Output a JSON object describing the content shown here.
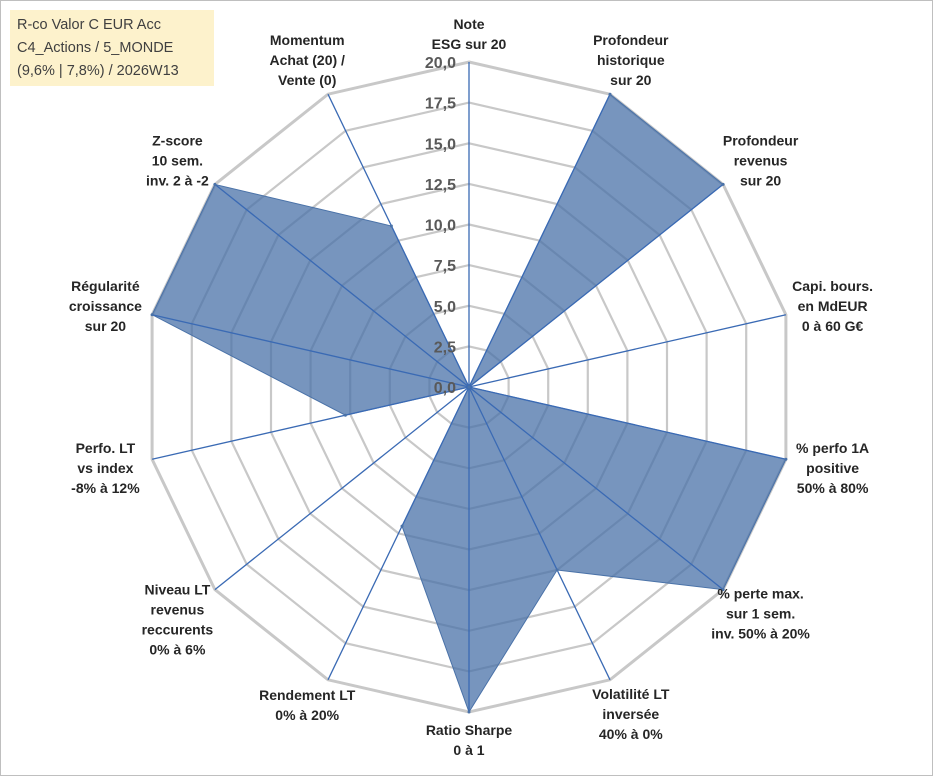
{
  "info": {
    "line1": "R-co Valor C EUR Acc",
    "line2": "C4_Actions / 5_MONDE",
    "line3": "(9,6% | 7,8%) / 2026W13"
  },
  "colors": {
    "fill": "#4a72a8",
    "axis": "#3a6ab4",
    "grid": "#c8c8c8",
    "box": "#fdf2cc"
  },
  "chart_data": {
    "type": "radar",
    "title": "",
    "rmax": 20,
    "ticks": [
      "0,0",
      "2,5",
      "5,0",
      "7,5",
      "10,0",
      "12,5",
      "15,0",
      "17,5",
      "20,0"
    ],
    "axes": [
      {
        "label": [
          "Note",
          "ESG sur 20"
        ],
        "value": 0
      },
      {
        "label": [
          "Profondeur",
          "historique",
          "sur 20"
        ],
        "value": 20
      },
      {
        "label": [
          "Profondeur",
          "revenus",
          "sur 20"
        ],
        "value": 20
      },
      {
        "label": [
          "Capi. bours.",
          "en MdEUR",
          "0 à 60 G€"
        ],
        "value": 0
      },
      {
        "label": [
          "% perfo 1A",
          "positive",
          "50% à 80%"
        ],
        "value": 20
      },
      {
        "label": [
          "% perte max.",
          "sur 1 sem.",
          "inv. 50% à 20%"
        ],
        "value": 20
      },
      {
        "label": [
          "Volatilité LT",
          "inversée",
          "40% à 0%"
        ],
        "value": 12.5
      },
      {
        "label": [
          "Ratio Sharpe",
          "0 à 1"
        ],
        "value": 20
      },
      {
        "label": [
          "Rendement LT",
          "0% à 20%"
        ],
        "value": 9.5
      },
      {
        "label": [
          "Niveau LT",
          "revenus",
          "reccurents",
          "0% à 6%"
        ],
        "value": 0
      },
      {
        "label": [
          "Perfo. LT",
          "vs index",
          "-8% à 12%"
        ],
        "value": 7.8
      },
      {
        "label": [
          "Régularité",
          "croissance",
          "sur 20"
        ],
        "value": 20
      },
      {
        "label": [
          "Z-score",
          "10 sem.",
          "inv. 2 à -2"
        ],
        "value": 20
      },
      {
        "label": [
          "Momentum",
          "Achat (20) /",
          "Vente (0)"
        ],
        "value": 11
      }
    ]
  }
}
